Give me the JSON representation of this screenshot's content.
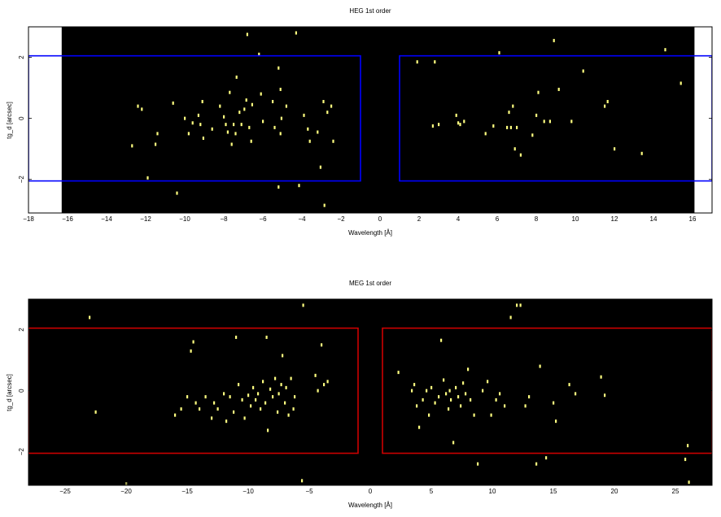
{
  "chart_data": [
    {
      "type": "scatter",
      "title": "HEG 1st order",
      "xlabel": "Wavelength [Å]",
      "ylabel": "tg_d [arcsec]",
      "xlim": [
        -18,
        17
      ],
      "ylim": [
        -3.1,
        3.0
      ],
      "data_xlim": [
        -16.3,
        16.1
      ],
      "x_ticks": [
        -18,
        -16,
        -14,
        -12,
        -10,
        -8,
        -6,
        -4,
        -2,
        0,
        2,
        4,
        6,
        8,
        10,
        12,
        14,
        16
      ],
      "y_ticks": [
        -2,
        0,
        2
      ],
      "box_color": "#0000ff",
      "point_color": "#ffff80",
      "background": "#000000",
      "regions": [
        {
          "x": [
            -18,
            -1.0
          ],
          "y": [
            -2.05,
            2.05
          ]
        },
        {
          "x": [
            1.0,
            17
          ],
          "y": [
            -2.05,
            2.05
          ]
        }
      ],
      "points": [
        [
          -12.7,
          -0.9
        ],
        [
          -12.4,
          0.4
        ],
        [
          -12.2,
          0.3
        ],
        [
          -11.9,
          -1.95
        ],
        [
          -11.5,
          -0.85
        ],
        [
          -11.4,
          -0.5
        ],
        [
          -10.6,
          0.5
        ],
        [
          -10.4,
          -2.45
        ],
        [
          -10.0,
          0.0
        ],
        [
          -9.8,
          -0.5
        ],
        [
          -9.6,
          -0.15
        ],
        [
          -9.3,
          0.1
        ],
        [
          -9.2,
          -0.2
        ],
        [
          -9.1,
          0.55
        ],
        [
          -9.05,
          -0.65
        ],
        [
          -8.6,
          -0.35
        ],
        [
          -8.2,
          0.4
        ],
        [
          -8.0,
          0.05
        ],
        [
          -7.9,
          -0.2
        ],
        [
          -7.8,
          -0.45
        ],
        [
          -7.7,
          0.85
        ],
        [
          -7.6,
          -0.85
        ],
        [
          -7.5,
          -0.2
        ],
        [
          -7.4,
          -0.5
        ],
        [
          -7.35,
          1.35
        ],
        [
          -7.2,
          0.2
        ],
        [
          -7.1,
          -0.2
        ],
        [
          -6.95,
          0.3
        ],
        [
          -6.85,
          0.6
        ],
        [
          -6.8,
          2.75
        ],
        [
          -6.7,
          -0.3
        ],
        [
          -6.6,
          -0.75
        ],
        [
          -6.55,
          0.45
        ],
        [
          -6.2,
          2.1
        ],
        [
          -6.1,
          0.8
        ],
        [
          -6.0,
          -0.1
        ],
        [
          -5.5,
          0.55
        ],
        [
          -5.4,
          -0.3
        ],
        [
          -5.2,
          1.65
        ],
        [
          -5.1,
          0.95
        ],
        [
          -5.1,
          -0.5
        ],
        [
          -5.05,
          0.0
        ],
        [
          -4.8,
          0.4
        ],
        [
          -4.3,
          2.8
        ],
        [
          -4.15,
          -2.2
        ],
        [
          -3.9,
          0.1
        ],
        [
          -3.7,
          -0.35
        ],
        [
          -3.6,
          -0.75
        ],
        [
          -3.2,
          -0.45
        ],
        [
          -3.05,
          -1.6
        ],
        [
          -2.9,
          0.55
        ],
        [
          -2.85,
          -2.85
        ],
        [
          -2.7,
          0.2
        ],
        [
          -2.5,
          0.4
        ],
        [
          -2.4,
          -0.75
        ],
        [
          -5.2,
          -2.25
        ],
        [
          1.9,
          1.85
        ],
        [
          2.7,
          -0.25
        ],
        [
          2.8,
          1.85
        ],
        [
          3.0,
          -0.2
        ],
        [
          3.9,
          0.1
        ],
        [
          4.0,
          -0.15
        ],
        [
          4.1,
          -0.2
        ],
        [
          4.3,
          -0.1
        ],
        [
          5.4,
          -0.5
        ],
        [
          5.8,
          -0.25
        ],
        [
          6.1,
          2.15
        ],
        [
          6.5,
          -0.3
        ],
        [
          6.6,
          0.2
        ],
        [
          6.7,
          -0.3
        ],
        [
          6.8,
          0.4
        ],
        [
          6.9,
          -1.0
        ],
        [
          7.0,
          -0.3
        ],
        [
          7.2,
          -1.2
        ],
        [
          7.8,
          -0.55
        ],
        [
          8.0,
          0.1
        ],
        [
          8.1,
          0.85
        ],
        [
          8.4,
          -0.1
        ],
        [
          8.7,
          -0.1
        ],
        [
          8.9,
          2.55
        ],
        [
          9.15,
          0.95
        ],
        [
          9.8,
          -0.1
        ],
        [
          10.4,
          1.55
        ],
        [
          11.5,
          0.4
        ],
        [
          11.65,
          0.55
        ],
        [
          12.0,
          -1.0
        ],
        [
          13.4,
          -1.15
        ],
        [
          14.6,
          2.25
        ],
        [
          15.4,
          1.15
        ]
      ]
    },
    {
      "type": "scatter",
      "title": "MEG 1st order",
      "xlabel": "Wavelength [Å]",
      "ylabel": "tg_d [arcsec]",
      "xlim": [
        -28,
        28
      ],
      "ylim": [
        -3.1,
        3.0
      ],
      "data_xlim": [
        -28,
        28
      ],
      "x_ticks": [
        -25,
        -20,
        -15,
        -10,
        -5,
        0,
        5,
        10,
        15,
        20,
        25
      ],
      "y_ticks": [
        -2,
        0,
        2
      ],
      "box_color": "#cc0000",
      "point_color": "#ffff80",
      "background": "#000000",
      "regions": [
        {
          "x": [
            -28,
            -1.0
          ],
          "y": [
            -2.05,
            2.05
          ]
        },
        {
          "x": [
            1.0,
            28
          ],
          "y": [
            -2.05,
            2.05
          ]
        }
      ],
      "points": [
        [
          -23.0,
          2.4
        ],
        [
          -22.5,
          -0.7
        ],
        [
          -20.0,
          -3.05
        ],
        [
          -16.0,
          -0.8
        ],
        [
          -15.5,
          -0.6
        ],
        [
          -15.0,
          -0.2
        ],
        [
          -14.5,
          1.6
        ],
        [
          -14.7,
          1.3
        ],
        [
          -14.3,
          -0.4
        ],
        [
          -14.0,
          -0.6
        ],
        [
          -13.5,
          -0.2
        ],
        [
          -13.0,
          -0.9
        ],
        [
          -12.8,
          -0.4
        ],
        [
          -12.5,
          -0.6
        ],
        [
          -12.0,
          -0.1
        ],
        [
          -11.8,
          -1.0
        ],
        [
          -11.5,
          -0.2
        ],
        [
          -11.2,
          -0.7
        ],
        [
          -11.0,
          1.75
        ],
        [
          -10.8,
          0.2
        ],
        [
          -10.5,
          -0.3
        ],
        [
          -10.3,
          -0.9
        ],
        [
          -10.0,
          -0.15
        ],
        [
          -9.8,
          -0.5
        ],
        [
          -9.6,
          0.1
        ],
        [
          -9.4,
          -0.3
        ],
        [
          -9.2,
          -0.1
        ],
        [
          -9.0,
          -0.6
        ],
        [
          -8.8,
          0.3
        ],
        [
          -8.6,
          -0.4
        ],
        [
          -8.5,
          1.75
        ],
        [
          -8.4,
          -1.3
        ],
        [
          -8.2,
          0.05
        ],
        [
          -8.0,
          -0.2
        ],
        [
          -7.8,
          0.4
        ],
        [
          -7.6,
          -0.7
        ],
        [
          -7.5,
          -0.1
        ],
        [
          -7.3,
          0.2
        ],
        [
          -7.2,
          1.15
        ],
        [
          -7.0,
          -0.4
        ],
        [
          -6.9,
          0.1
        ],
        [
          -6.7,
          -0.8
        ],
        [
          -6.5,
          0.4
        ],
        [
          -6.3,
          -0.6
        ],
        [
          -6.2,
          -0.2
        ],
        [
          -5.5,
          2.8
        ],
        [
          -5.6,
          -2.95
        ],
        [
          -4.5,
          0.5
        ],
        [
          -4.0,
          1.5
        ],
        [
          -3.8,
          0.2
        ],
        [
          -3.5,
          0.3
        ],
        [
          -4.3,
          0.0
        ],
        [
          2.3,
          0.6
        ],
        [
          3.4,
          0.0
        ],
        [
          3.6,
          0.2
        ],
        [
          3.8,
          -0.5
        ],
        [
          4.0,
          -1.2
        ],
        [
          4.3,
          -0.3
        ],
        [
          4.6,
          0.0
        ],
        [
          4.8,
          -0.8
        ],
        [
          5.0,
          0.1
        ],
        [
          5.3,
          -0.4
        ],
        [
          5.6,
          -0.2
        ],
        [
          5.8,
          1.65
        ],
        [
          6.0,
          0.35
        ],
        [
          6.2,
          -0.1
        ],
        [
          6.4,
          -0.6
        ],
        [
          6.5,
          0.0
        ],
        [
          6.6,
          -0.3
        ],
        [
          6.8,
          -1.7
        ],
        [
          7.0,
          0.1
        ],
        [
          7.2,
          -0.2
        ],
        [
          7.4,
          -0.5
        ],
        [
          7.6,
          0.25
        ],
        [
          7.8,
          -0.1
        ],
        [
          8.0,
          0.7
        ],
        [
          8.2,
          -0.3
        ],
        [
          8.5,
          -0.8
        ],
        [
          8.8,
          -2.4
        ],
        [
          9.2,
          0.0
        ],
        [
          9.6,
          0.3
        ],
        [
          9.9,
          -0.8
        ],
        [
          10.3,
          -0.3
        ],
        [
          10.6,
          -0.1
        ],
        [
          11.0,
          -0.5
        ],
        [
          11.5,
          2.4
        ],
        [
          12.0,
          2.8
        ],
        [
          12.3,
          2.8
        ],
        [
          12.7,
          -0.5
        ],
        [
          13.0,
          -0.2
        ],
        [
          13.6,
          -2.4
        ],
        [
          13.9,
          0.8
        ],
        [
          14.4,
          -2.2
        ],
        [
          15.0,
          -0.4
        ],
        [
          15.2,
          -1.0
        ],
        [
          16.3,
          0.2
        ],
        [
          16.8,
          -0.1
        ],
        [
          18.9,
          0.45
        ],
        [
          19.2,
          -0.15
        ],
        [
          25.8,
          -2.25
        ],
        [
          26.0,
          -1.8
        ],
        [
          26.1,
          -3.0
        ]
      ]
    }
  ]
}
